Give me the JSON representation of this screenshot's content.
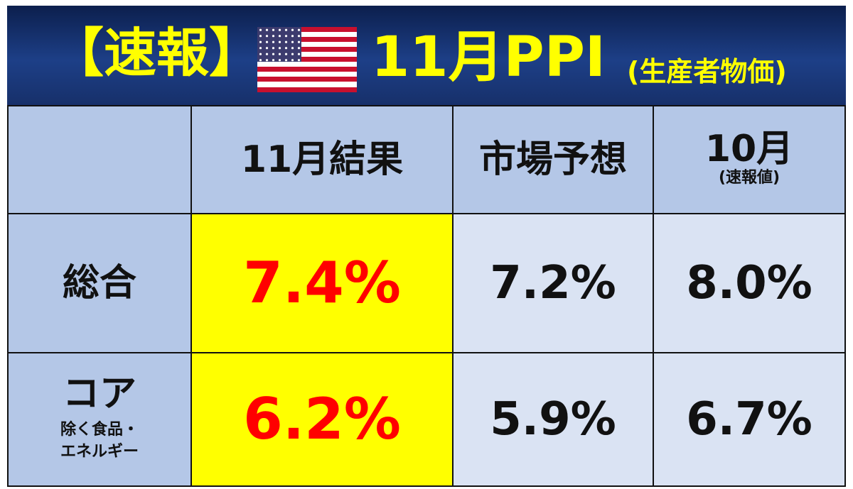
{
  "header": {
    "bracket": "【速報】",
    "title": "11月PPI",
    "subtitle": "(生産者物価)"
  },
  "table": {
    "columns": [
      {
        "label": "11月結果"
      },
      {
        "label": "市場予想"
      },
      {
        "label": "10月",
        "note": "(速報値)"
      }
    ],
    "rows": [
      {
        "label": "総合",
        "values": [
          "7.4%",
          "7.2%",
          "8.0%"
        ]
      },
      {
        "label": "コア",
        "note": [
          "除く食品・",
          "エネルギー"
        ],
        "values": [
          "6.2%",
          "5.9%",
          "6.7%"
        ]
      }
    ]
  }
}
